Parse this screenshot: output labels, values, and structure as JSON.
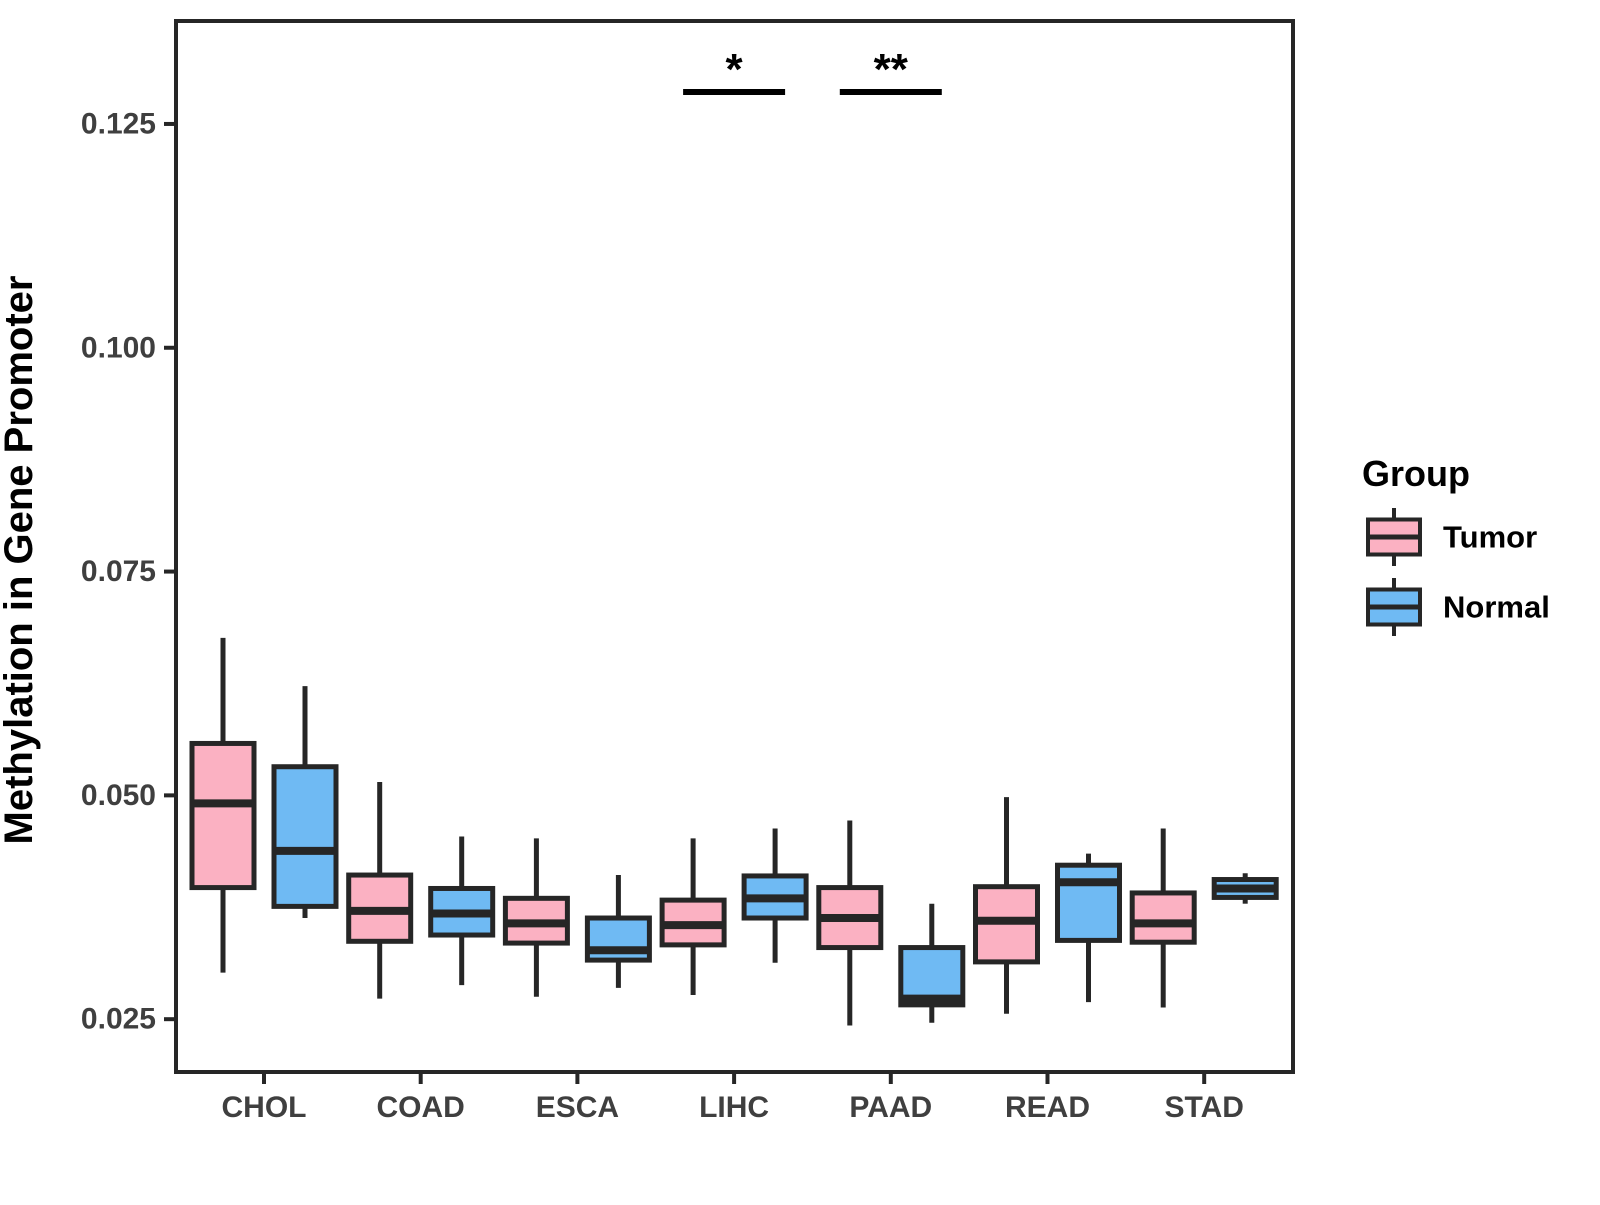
{
  "chart_data": {
    "type": "boxplot",
    "title": "",
    "xlabel": "",
    "ylabel": "Methylation in Gene Promoter",
    "categories": [
      "CHOL",
      "COAD",
      "ESCA",
      "LIHC",
      "PAAD",
      "READ",
      "STAD"
    ],
    "ylim": [
      0.0191,
      0.1365
    ],
    "yticks": [
      0.025,
      0.05,
      0.075,
      0.1,
      0.125
    ],
    "ytick_labels": [
      "0.025",
      "0.050",
      "0.075",
      "0.100",
      "0.125"
    ],
    "grid": false,
    "legend": {
      "title": "Group",
      "position": "right",
      "entries": [
        {
          "name": "Tumor",
          "color": "#FBB1C2"
        },
        {
          "name": "Normal",
          "color": "#6FBAF3"
        }
      ]
    },
    "series": [
      {
        "name": "Tumor",
        "color": "#FBB1C2",
        "boxes": [
          {
            "category": "CHOL",
            "low": 0.0302,
            "q1": 0.0397,
            "med": 0.0491,
            "q3": 0.0558,
            "high": 0.0676
          },
          {
            "category": "COAD",
            "low": 0.0273,
            "q1": 0.0337,
            "med": 0.0371,
            "q3": 0.0411,
            "high": 0.0515
          },
          {
            "category": "ESCA",
            "low": 0.0275,
            "q1": 0.0335,
            "med": 0.0357,
            "q3": 0.0385,
            "high": 0.0452
          },
          {
            "category": "LIHC",
            "low": 0.0277,
            "q1": 0.0333,
            "med": 0.0355,
            "q3": 0.0383,
            "high": 0.0452
          },
          {
            "category": "PAAD",
            "low": 0.0243,
            "q1": 0.033,
            "med": 0.0363,
            "q3": 0.0397,
            "high": 0.0472
          },
          {
            "category": "READ",
            "low": 0.0256,
            "q1": 0.0314,
            "med": 0.036,
            "q3": 0.0398,
            "high": 0.0498
          },
          {
            "category": "STAD",
            "low": 0.0263,
            "q1": 0.0336,
            "med": 0.0357,
            "q3": 0.0391,
            "high": 0.0463
          }
        ]
      },
      {
        "name": "Normal",
        "color": "#6FBAF3",
        "boxes": [
          {
            "category": "CHOL",
            "low": 0.0363,
            "q1": 0.0376,
            "med": 0.0438,
            "q3": 0.0532,
            "high": 0.0622
          },
          {
            "category": "COAD",
            "low": 0.0288,
            "q1": 0.0344,
            "med": 0.0368,
            "q3": 0.0396,
            "high": 0.0454
          },
          {
            "category": "ESCA",
            "low": 0.0285,
            "q1": 0.0316,
            "med": 0.0327,
            "q3": 0.0363,
            "high": 0.0411
          },
          {
            "category": "LIHC",
            "low": 0.0313,
            "q1": 0.0363,
            "med": 0.0385,
            "q3": 0.041,
            "high": 0.0463
          },
          {
            "category": "PAAD",
            "low": 0.0246,
            "q1": 0.0266,
            "med": 0.0273,
            "q3": 0.033,
            "high": 0.0379
          },
          {
            "category": "READ",
            "low": 0.0269,
            "q1": 0.0338,
            "med": 0.0403,
            "q3": 0.0422,
            "high": 0.0435
          },
          {
            "category": "STAD",
            "low": 0.0379,
            "q1": 0.0386,
            "med": 0.0396,
            "q3": 0.0406,
            "high": 0.0413
          }
        ]
      }
    ],
    "annotations": [
      {
        "type": "significance",
        "category": "LIHC",
        "label": "*"
      },
      {
        "type": "significance",
        "category": "PAAD",
        "label": "**"
      }
    ],
    "style": {
      "outline_color": "#262626",
      "median_color": "#262626",
      "tick_text_color": "#3F3F3F",
      "title_text_color": "#000000",
      "annotation_color": "#000000",
      "background_color": "#FFFFFF"
    }
  }
}
